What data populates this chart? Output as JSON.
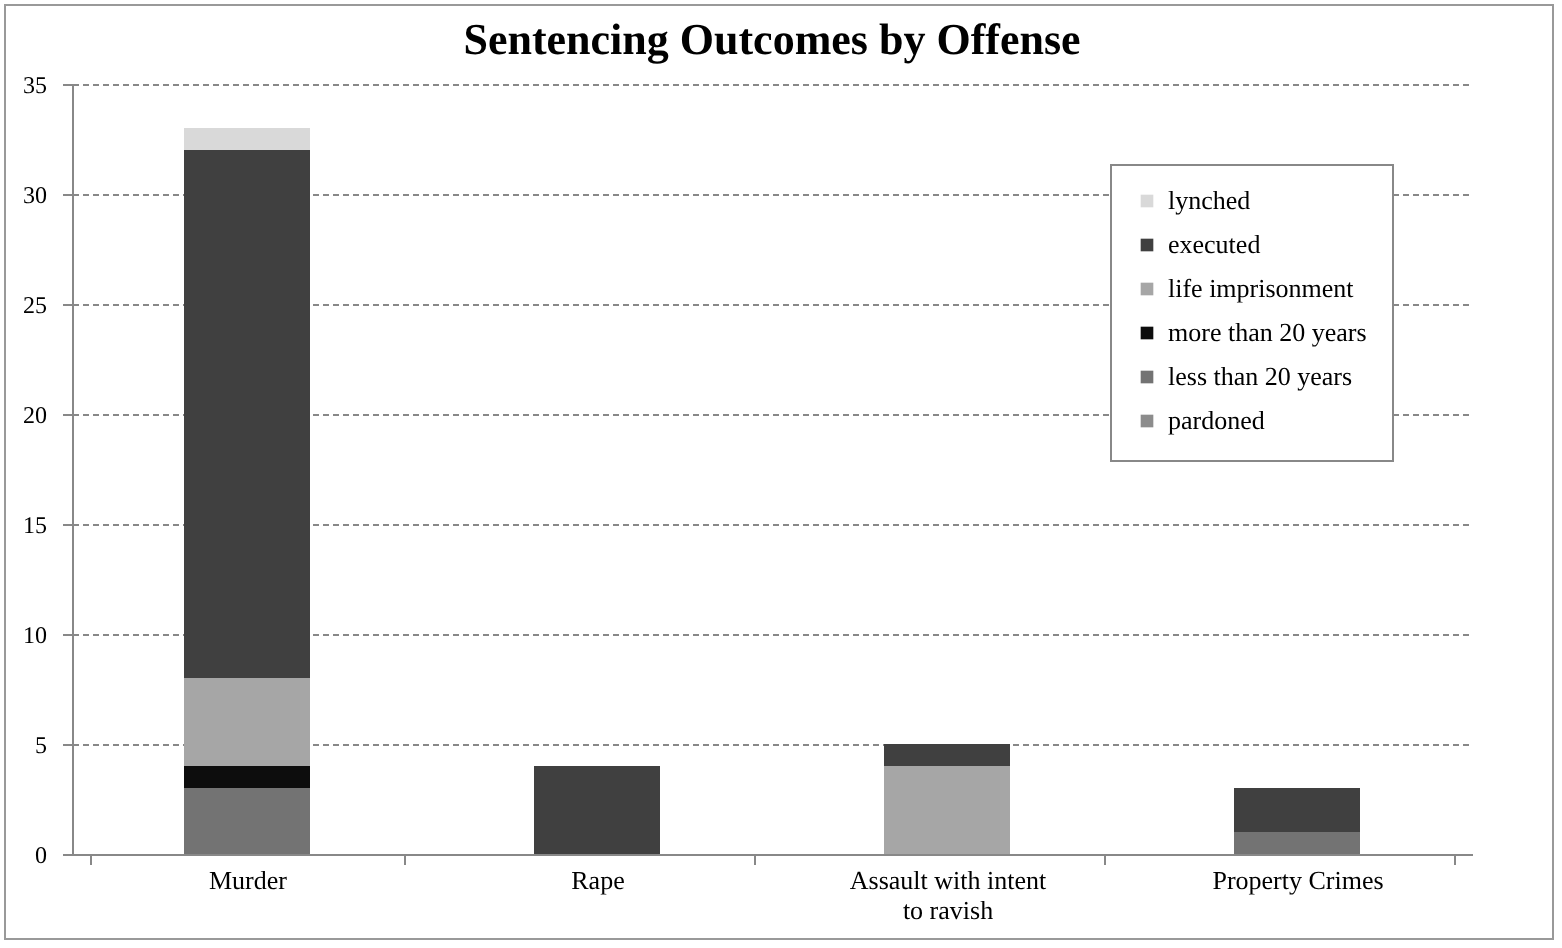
{
  "chart_data": {
    "type": "bar",
    "title": "Sentencing Outcomes by Offense",
    "stacked": true,
    "categories": [
      "Murder",
      "Rape",
      "Assault with intent to ravish",
      "Property Crimes"
    ],
    "series": [
      {
        "name": "pardoned",
        "color": "#8c8c8c",
        "values": [
          0,
          0,
          0,
          0
        ]
      },
      {
        "name": "less than 20 years",
        "color": "#737373",
        "values": [
          3,
          0,
          0,
          1
        ]
      },
      {
        "name": "more than 20 years",
        "color": "#0d0d0d",
        "values": [
          1,
          0,
          0,
          0
        ]
      },
      {
        "name": "life imprisonment",
        "color": "#a6a6a6",
        "values": [
          4,
          0,
          4,
          0
        ]
      },
      {
        "name": "executed",
        "color": "#404040",
        "values": [
          24,
          4,
          1,
          2
        ]
      },
      {
        "name": "lynched",
        "color": "#d9d9d9",
        "values": [
          1,
          0,
          0,
          0
        ]
      }
    ],
    "ylim": [
      0,
      35
    ],
    "yticks": [
      0,
      5,
      10,
      15,
      20,
      25,
      30,
      35
    ],
    "grid": "y",
    "legend": "top right"
  }
}
